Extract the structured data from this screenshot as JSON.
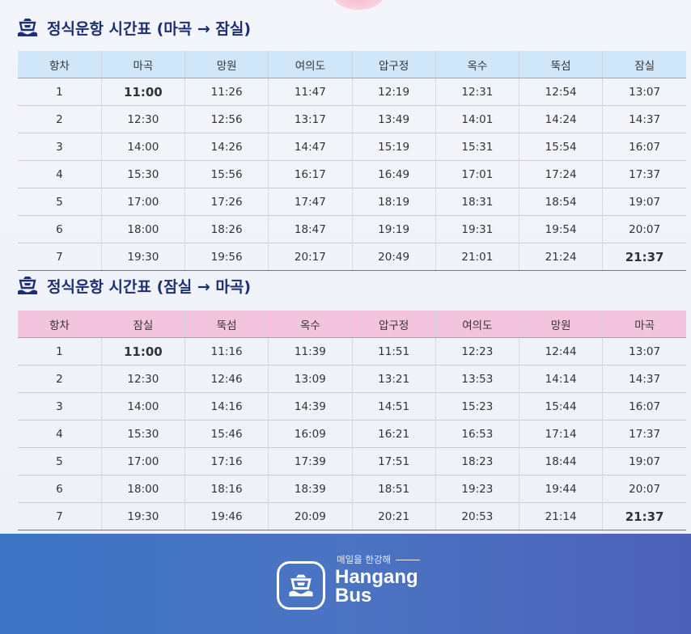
{
  "schedule_out": {
    "title": "정식운항 시간표 (마곡 → 잠실)",
    "headers": [
      "항차",
      "마곡",
      "망원",
      "여의도",
      "압구정",
      "옥수",
      "뚝섬",
      "잠실"
    ],
    "rows": [
      [
        "1",
        "11:00",
        "11:26",
        "11:47",
        "12:19",
        "12:31",
        "12:54",
        "13:07"
      ],
      [
        "2",
        "12:30",
        "12:56",
        "13:17",
        "13:49",
        "14:01",
        "14:24",
        "14:37"
      ],
      [
        "3",
        "14:00",
        "14:26",
        "14:47",
        "15:19",
        "15:31",
        "15:54",
        "16:07"
      ],
      [
        "4",
        "15:30",
        "15:56",
        "16:17",
        "16:49",
        "17:01",
        "17:24",
        "17:37"
      ],
      [
        "5",
        "17:00",
        "17:26",
        "17:47",
        "18:19",
        "18:31",
        "18:54",
        "19:07"
      ],
      [
        "6",
        "18:00",
        "18:26",
        "18:47",
        "19:19",
        "19:31",
        "19:54",
        "20:07"
      ],
      [
        "7",
        "19:30",
        "19:56",
        "20:17",
        "20:49",
        "21:01",
        "21:24",
        "21:37"
      ]
    ],
    "accent_color": "#1a6fbf"
  },
  "schedule_in": {
    "title": "정식운항 시간표 (잠실 → 마곡)",
    "headers": [
      "항차",
      "잠실",
      "뚝섬",
      "옥수",
      "압구정",
      "여의도",
      "망원",
      "마곡"
    ],
    "rows": [
      [
        "1",
        "11:00",
        "11:16",
        "11:39",
        "11:51",
        "12:23",
        "12:44",
        "13:07"
      ],
      [
        "2",
        "12:30",
        "12:46",
        "13:09",
        "13:21",
        "13:53",
        "14:14",
        "14:37"
      ],
      [
        "3",
        "14:00",
        "14:16",
        "14:39",
        "14:51",
        "15:23",
        "15:44",
        "16:07"
      ],
      [
        "4",
        "15:30",
        "15:46",
        "16:09",
        "16:21",
        "16:53",
        "17:14",
        "17:37"
      ],
      [
        "5",
        "17:00",
        "17:16",
        "17:39",
        "17:51",
        "18:23",
        "18:44",
        "19:07"
      ],
      [
        "6",
        "18:00",
        "18:16",
        "18:39",
        "18:51",
        "19:23",
        "19:44",
        "20:07"
      ],
      [
        "7",
        "19:30",
        "19:46",
        "20:09",
        "20:21",
        "20:53",
        "21:14",
        "21:37"
      ]
    ],
    "accent_color": "#e0151f"
  },
  "footer": {
    "tagline": "매일을 한강해",
    "brand_line1": "Hangang",
    "brand_line2": "Bus",
    "icon": "ship-icon"
  }
}
